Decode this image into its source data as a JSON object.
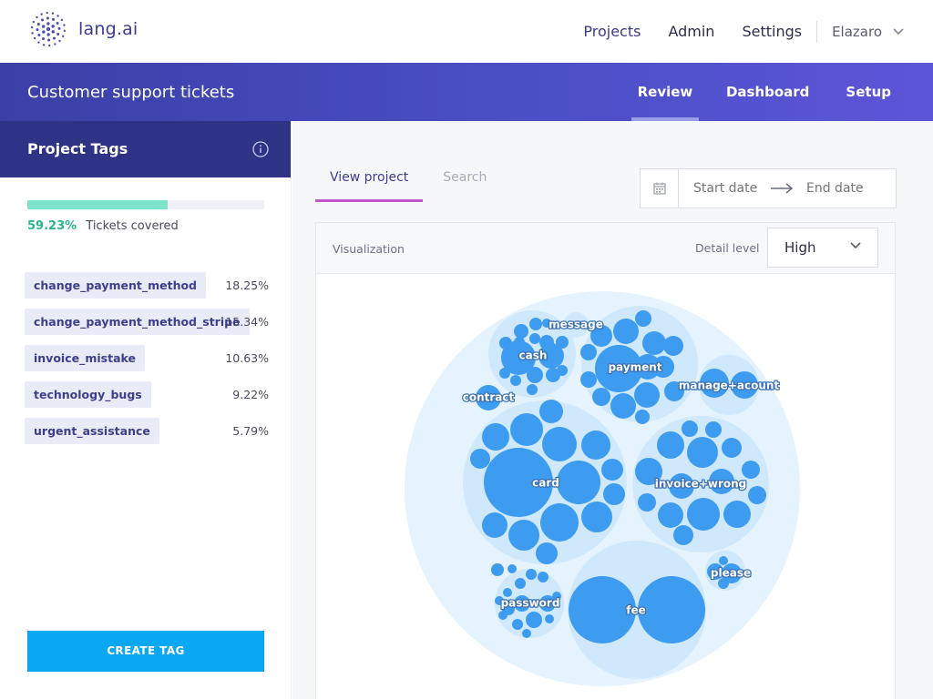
{
  "app": {
    "logo_text": "lang.ai"
  },
  "topnav": {
    "items": [
      {
        "label": "Projects",
        "active": true
      },
      {
        "label": "Admin",
        "active": false
      },
      {
        "label": "Settings",
        "active": false
      }
    ],
    "user": "Elazaro"
  },
  "project": {
    "title": "Customer support tickets",
    "tabs": [
      {
        "label": "Review",
        "active": true
      },
      {
        "label": "Dashboard",
        "active": false
      },
      {
        "label": "Setup",
        "active": false
      }
    ]
  },
  "sidebar": {
    "title": "Project Tags",
    "coverage": {
      "fraction": 0.5923,
      "percent_label": "59.23%",
      "label": "Tickets covered"
    },
    "tags": [
      {
        "name": "change_payment_method",
        "percent": "18.25%"
      },
      {
        "name": "change_payment_method_stripe",
        "percent": "15.34%"
      },
      {
        "name": "invoice_mistake",
        "percent": "10.63%"
      },
      {
        "name": "technology_bugs",
        "percent": "9.22%"
      },
      {
        "name": "urgent_assistance",
        "percent": "5.79%"
      }
    ],
    "create_button": "CREATE TAG"
  },
  "main": {
    "tabs": [
      {
        "label": "View project",
        "active": true
      },
      {
        "label": "Search",
        "active": false
      }
    ],
    "date_range": {
      "start_placeholder": "Start date",
      "end_placeholder": "End date"
    },
    "visualization": {
      "label": "Visualization",
      "detail_label": "Detail level",
      "detail_value": "High",
      "clusters": [
        "message",
        "cash",
        "payment",
        "manage+acount",
        "contract",
        "card",
        "invoice+wrong",
        "please",
        "password",
        "fee"
      ]
    }
  },
  "colors": {
    "accent": "#3b3f8e",
    "header_gradient_start": "#3b3fa6",
    "header_gradient_end": "#5d55d8",
    "sidebar_header": "#2e3385",
    "progress_fill": "#7be3c8",
    "button": "#0aa7f2",
    "bubble": "#3d9cf0",
    "bubble_group": "#cfe8fb",
    "bubble_outer": "#e4f3fd"
  }
}
